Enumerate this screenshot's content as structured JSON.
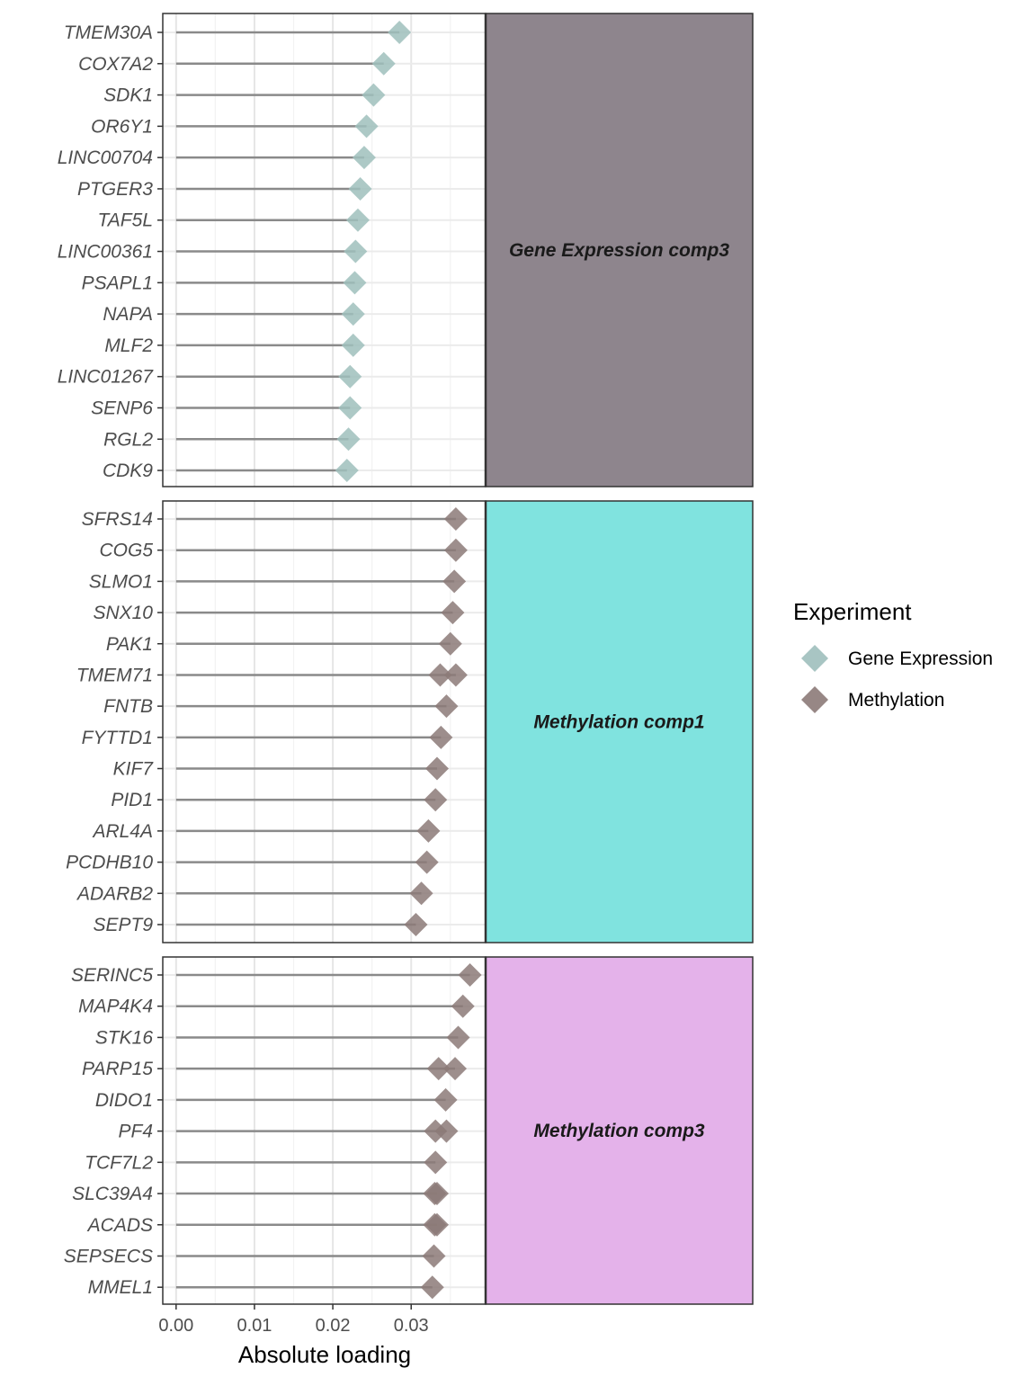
{
  "chart_data": {
    "type": "lollipop",
    "xlabel": "Absolute loading",
    "x_ticks": [
      0.0,
      0.01,
      0.02,
      0.03
    ],
    "x_tick_labels": [
      "0.00",
      "0.01",
      "0.02",
      "0.03"
    ],
    "xlim": [
      -0.0017,
      0.0395
    ],
    "grid": true,
    "legend": {
      "title": "Experiment",
      "position": "right",
      "entries": [
        {
          "name": "Gene Expression",
          "color": "#9fbfbc"
        },
        {
          "name": "Methylation",
          "color": "#8c7a78"
        }
      ]
    },
    "panels": [
      {
        "label": "Gene Expression comp3",
        "color": "#8e858d",
        "genes": [
          {
            "name": "TMEM30A",
            "points": [
              {
                "experiment": "Gene Expression",
                "value": 0.0285
              }
            ]
          },
          {
            "name": "COX7A2",
            "points": [
              {
                "experiment": "Gene Expression",
                "value": 0.0265
              }
            ]
          },
          {
            "name": "SDK1",
            "points": [
              {
                "experiment": "Gene Expression",
                "value": 0.0252
              }
            ]
          },
          {
            "name": "OR6Y1",
            "points": [
              {
                "experiment": "Gene Expression",
                "value": 0.0243
              }
            ]
          },
          {
            "name": "LINC00704",
            "points": [
              {
                "experiment": "Gene Expression",
                "value": 0.024
              }
            ]
          },
          {
            "name": "PTGER3",
            "points": [
              {
                "experiment": "Gene Expression",
                "value": 0.0235
              }
            ]
          },
          {
            "name": "TAF5L",
            "points": [
              {
                "experiment": "Gene Expression",
                "value": 0.0232
              }
            ]
          },
          {
            "name": "LINC00361",
            "points": [
              {
                "experiment": "Gene Expression",
                "value": 0.0229
              }
            ]
          },
          {
            "name": "PSAPL1",
            "points": [
              {
                "experiment": "Gene Expression",
                "value": 0.0228
              }
            ]
          },
          {
            "name": "NAPA",
            "points": [
              {
                "experiment": "Gene Expression",
                "value": 0.0226
              }
            ]
          },
          {
            "name": "MLF2",
            "points": [
              {
                "experiment": "Gene Expression",
                "value": 0.0226
              }
            ]
          },
          {
            "name": "LINC01267",
            "points": [
              {
                "experiment": "Gene Expression",
                "value": 0.0222
              }
            ]
          },
          {
            "name": "SENP6",
            "points": [
              {
                "experiment": "Gene Expression",
                "value": 0.0222
              }
            ]
          },
          {
            "name": "RGL2",
            "points": [
              {
                "experiment": "Gene Expression",
                "value": 0.022
              }
            ]
          },
          {
            "name": "CDK9",
            "points": [
              {
                "experiment": "Gene Expression",
                "value": 0.0218
              }
            ]
          }
        ]
      },
      {
        "label": "Methylation comp1",
        "color": "#80e3df",
        "genes": [
          {
            "name": "SFRS14",
            "points": [
              {
                "experiment": "Methylation",
                "value": 0.0357
              }
            ]
          },
          {
            "name": "COG5",
            "points": [
              {
                "experiment": "Methylation",
                "value": 0.0357
              }
            ]
          },
          {
            "name": "SLMO1",
            "points": [
              {
                "experiment": "Methylation",
                "value": 0.0355
              }
            ]
          },
          {
            "name": "SNX10",
            "points": [
              {
                "experiment": "Methylation",
                "value": 0.0353
              }
            ]
          },
          {
            "name": "PAK1",
            "points": [
              {
                "experiment": "Methylation",
                "value": 0.035
              }
            ]
          },
          {
            "name": "TMEM71",
            "points": [
              {
                "experiment": "Methylation",
                "value": 0.0337
              },
              {
                "experiment": "Methylation",
                "value": 0.0357
              }
            ]
          },
          {
            "name": "FNTB",
            "points": [
              {
                "experiment": "Methylation",
                "value": 0.0345
              }
            ]
          },
          {
            "name": "FYTTD1",
            "points": [
              {
                "experiment": "Methylation",
                "value": 0.0338
              }
            ]
          },
          {
            "name": "KIF7",
            "points": [
              {
                "experiment": "Methylation",
                "value": 0.0333
              }
            ]
          },
          {
            "name": "PID1",
            "points": [
              {
                "experiment": "Methylation",
                "value": 0.0331
              }
            ]
          },
          {
            "name": "ARL4A",
            "points": [
              {
                "experiment": "Methylation",
                "value": 0.0322
              }
            ]
          },
          {
            "name": "PCDHB10",
            "points": [
              {
                "experiment": "Methylation",
                "value": 0.032
              }
            ]
          },
          {
            "name": "ADARB2",
            "points": [
              {
                "experiment": "Methylation",
                "value": 0.0313
              }
            ]
          },
          {
            "name": "SEPT9",
            "points": [
              {
                "experiment": "Methylation",
                "value": 0.0306
              }
            ]
          }
        ]
      },
      {
        "label": "Methylation comp3",
        "color": "#e4b2ea",
        "genes": [
          {
            "name": "SERINC5",
            "points": [
              {
                "experiment": "Methylation",
                "value": 0.0375
              }
            ]
          },
          {
            "name": "MAP4K4",
            "points": [
              {
                "experiment": "Methylation",
                "value": 0.0366
              }
            ]
          },
          {
            "name": "STK16",
            "points": [
              {
                "experiment": "Methylation",
                "value": 0.036
              }
            ]
          },
          {
            "name": "PARP15",
            "points": [
              {
                "experiment": "Methylation",
                "value": 0.0335
              },
              {
                "experiment": "Methylation",
                "value": 0.0356
              }
            ]
          },
          {
            "name": "DIDO1",
            "points": [
              {
                "experiment": "Methylation",
                "value": 0.0344
              }
            ]
          },
          {
            "name": "PF4",
            "points": [
              {
                "experiment": "Methylation",
                "value": 0.0331
              },
              {
                "experiment": "Methylation",
                "value": 0.0345
              }
            ]
          },
          {
            "name": "TCF7L2",
            "points": [
              {
                "experiment": "Methylation",
                "value": 0.0331
              }
            ]
          },
          {
            "name": "SLC39A4",
            "points": [
              {
                "experiment": "Methylation",
                "value": 0.033
              },
              {
                "experiment": "Methylation",
                "value": 0.0333
              }
            ]
          },
          {
            "name": "ACADS",
            "points": [
              {
                "experiment": "Methylation",
                "value": 0.033
              },
              {
                "experiment": "Methylation",
                "value": 0.0333
              }
            ]
          },
          {
            "name": "SEPSECS",
            "points": [
              {
                "experiment": "Methylation",
                "value": 0.0329
              }
            ]
          },
          {
            "name": "MMEL1",
            "points": [
              {
                "experiment": "Methylation",
                "value": 0.0327
              }
            ]
          }
        ]
      }
    ]
  }
}
